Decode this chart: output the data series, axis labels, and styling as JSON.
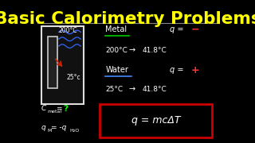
{
  "bg_color": "#000000",
  "title": "Basic Calorimetry Problems",
  "title_color": "#ffff00",
  "title_fontsize": 15.5,
  "temp_200_text": "200°C",
  "temp_25_text": "25°c",
  "temp_color": "#ffffff",
  "cmetal_q_color": "#00ff00",
  "metal_label": "Metal",
  "metal_underline_color": "#00cc00",
  "metal_200": "200°C",
  "metal_arrow": "→",
  "metal_418": "41.8°C",
  "q_metal_sign": "−",
  "q_sign_color": "#ff3333",
  "water_label": "Water",
  "water_underline_color": "#4488ff",
  "water_25": "25°C",
  "water_arrow": "→",
  "water_418": "41.8°C",
  "q_water_sign": "+",
  "formula_text": "q = mcΔT",
  "formula_box_color": "#cc0000",
  "formula_text_color": "#ffffff",
  "white": "#ffffff"
}
